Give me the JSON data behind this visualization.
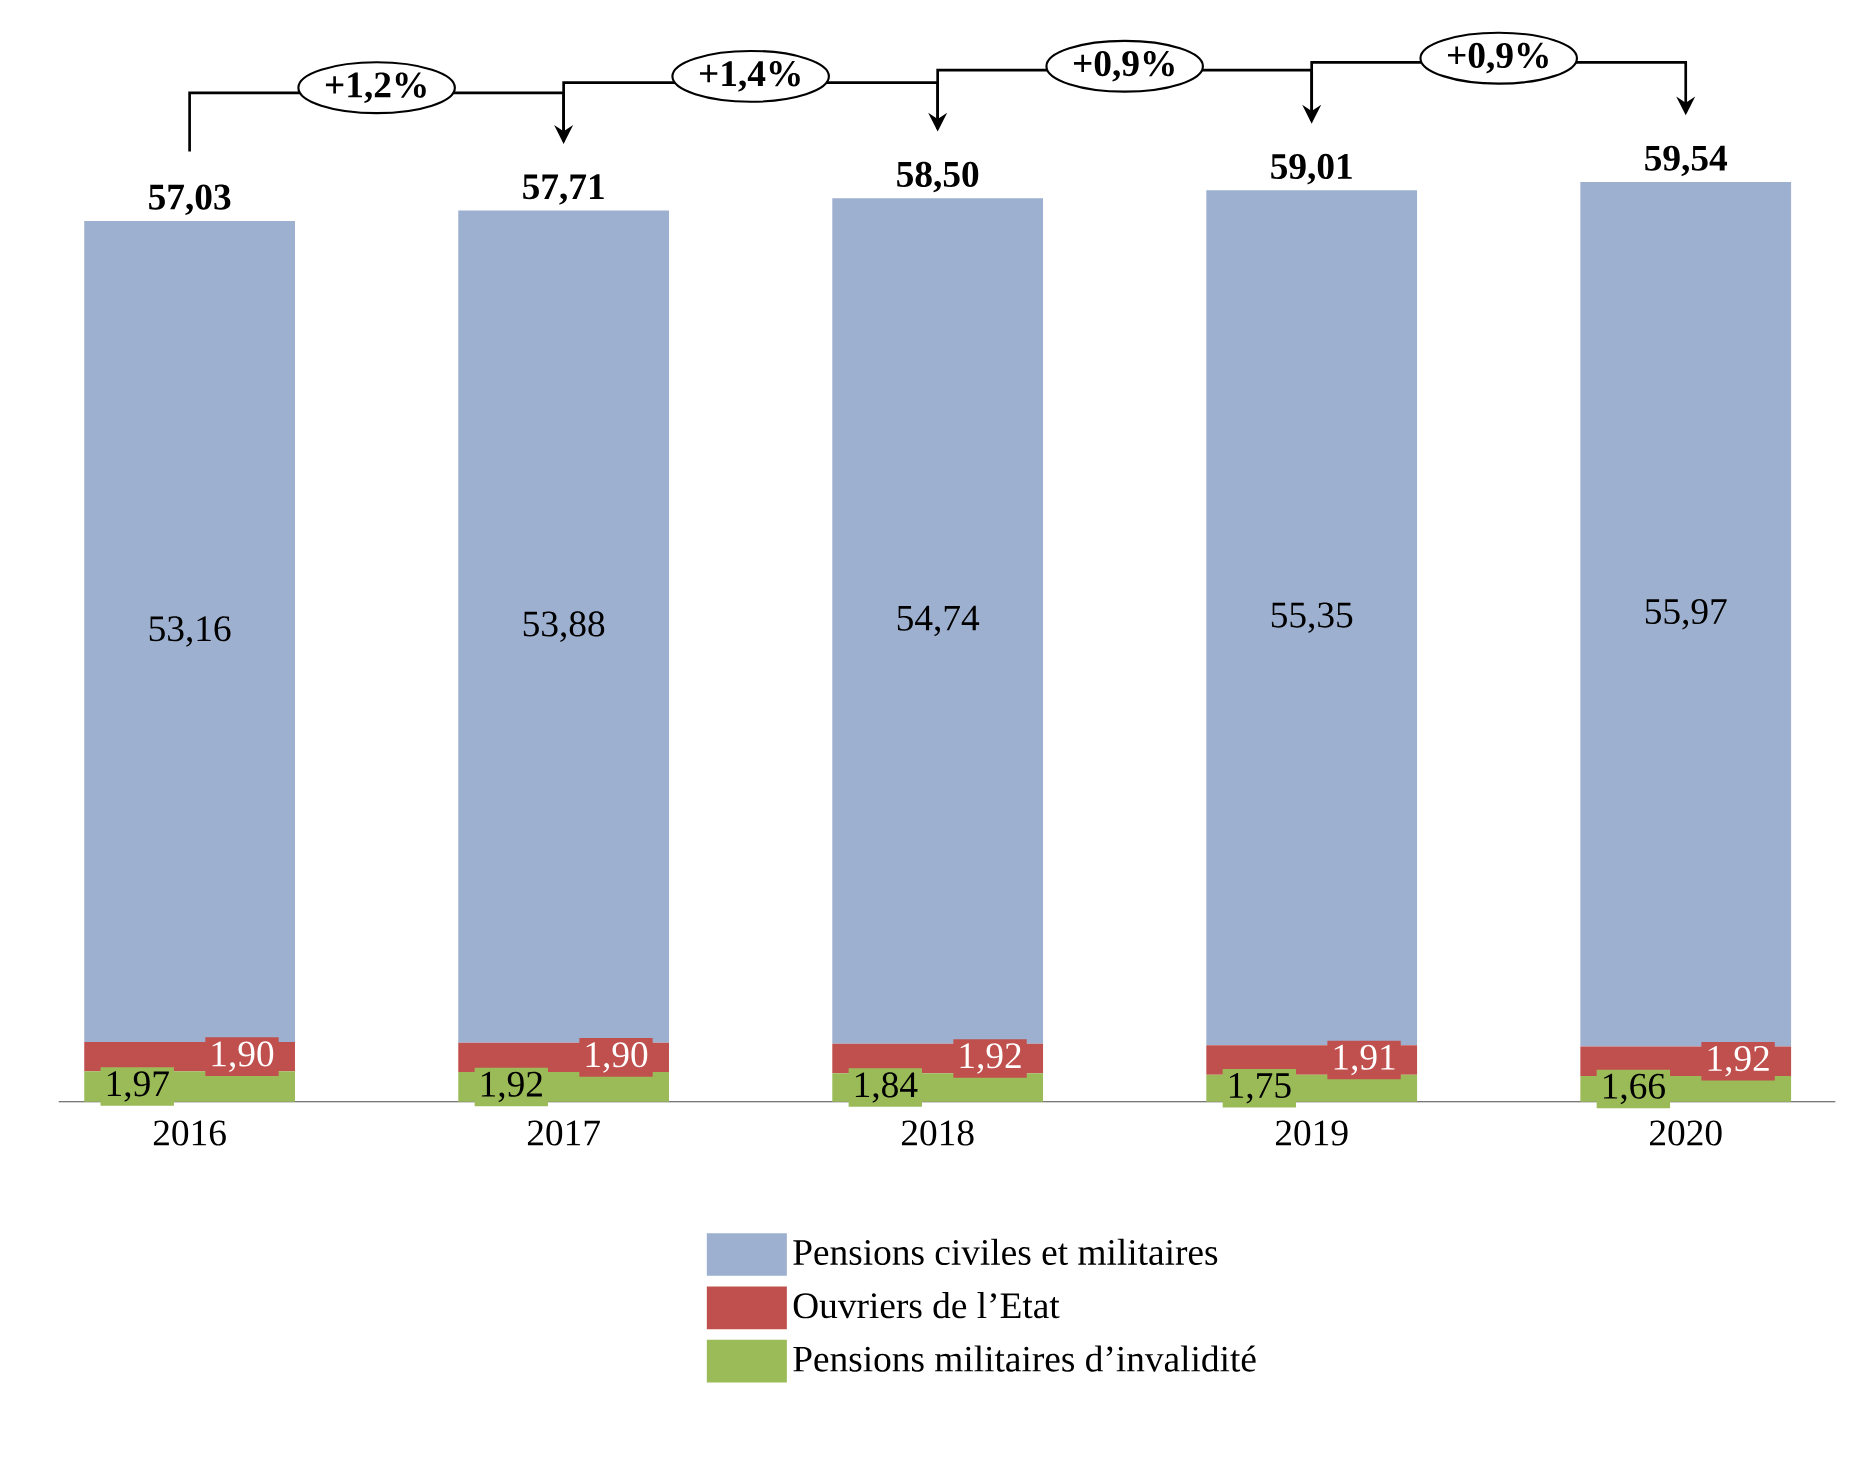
{
  "chart_data": {
    "type": "bar",
    "stacked": true,
    "categories": [
      "2016",
      "2017",
      "2018",
      "2019",
      "2020"
    ],
    "series": [
      {
        "name": "Pensions militaires d’invalidité",
        "color": "#9bbb59",
        "values": [
          1.97,
          1.92,
          1.84,
          1.75,
          1.66
        ],
        "value_labels": [
          "1,97",
          "1,92",
          "1,84",
          "1,75",
          "1,66"
        ]
      },
      {
        "name": "Ouvriers de l’Etat",
        "color": "#c0504d",
        "values": [
          1.9,
          1.9,
          1.92,
          1.91,
          1.92
        ],
        "value_labels": [
          "1,90",
          "1,90",
          "1,92",
          "1,91",
          "1,92"
        ]
      },
      {
        "name": "Pensions civiles et militaires",
        "color": "#9db0cf",
        "values": [
          53.16,
          53.88,
          54.74,
          55.35,
          55.97
        ],
        "value_labels": [
          "53,16",
          "53,88",
          "54,74",
          "55,35",
          "55,97"
        ]
      }
    ],
    "totals": [
      "57,03",
      "57,71",
      "58,50",
      "59,01",
      "59,54"
    ],
    "annotations": [
      "+1,2%",
      "+1,4%",
      "+0,9%",
      "+0,9%"
    ],
    "legend": "bottom"
  }
}
